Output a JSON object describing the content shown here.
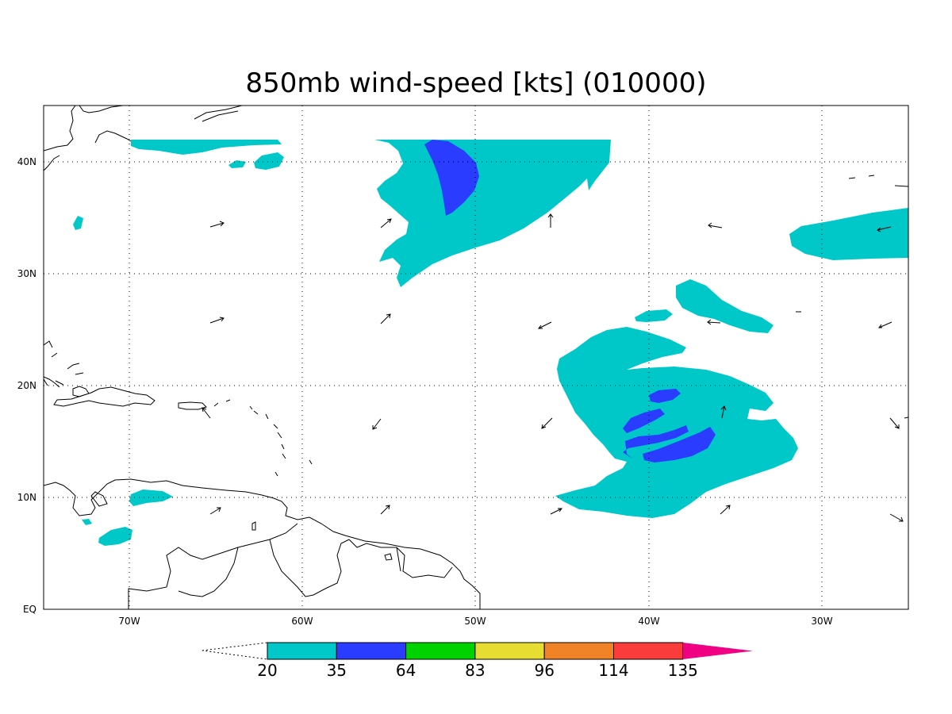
{
  "title": "850mb wind-speed [kts] (010000)",
  "lon_labels": [
    "70W",
    "60W",
    "50W",
    "40W",
    "30W"
  ],
  "lat_labels": [
    "40N",
    "30N",
    "20N",
    "10N",
    "EQ"
  ],
  "colorbar": {
    "labels": [
      "20",
      "35",
      "64",
      "83",
      "96",
      "114",
      "135"
    ],
    "colors": [
      "#00c8c8",
      "#2a3cff",
      "#00d200",
      "#e6dc32",
      "#f08228",
      "#fa3c3c",
      "#f00082"
    ]
  },
  "shading": {
    "ws_20_35": "#00c8c8",
    "ws_35_64": "#2a3cff"
  }
}
